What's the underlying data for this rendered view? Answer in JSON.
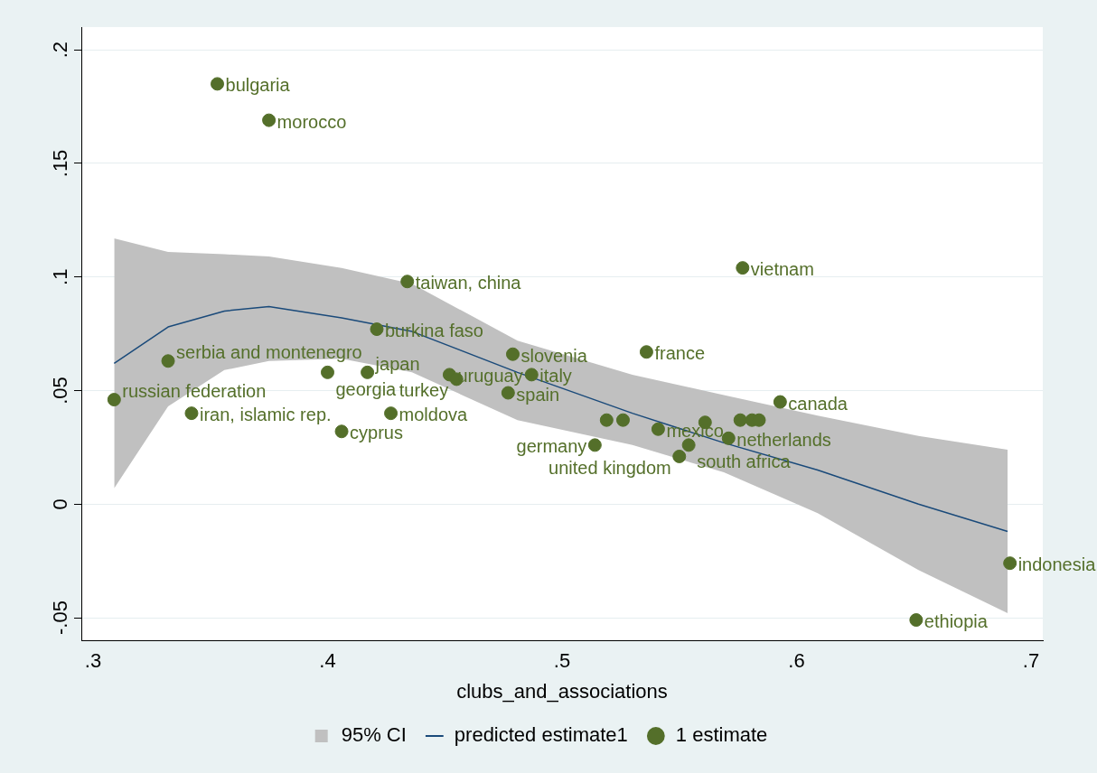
{
  "chart_data": {
    "type": "scatter",
    "xlabel": "clubs_and_associations",
    "xlim": [
      0.295,
      0.705
    ],
    "xticks": [
      {
        "value": 0.3,
        "label": ".3"
      },
      {
        "value": 0.4,
        "label": ".4"
      },
      {
        "value": 0.5,
        "label": ".5"
      },
      {
        "value": 0.6,
        "label": ".6"
      },
      {
        "value": 0.7,
        "label": ".7"
      }
    ],
    "ylim": [
      -0.06,
      0.21
    ],
    "yticks": [
      {
        "value": -0.05,
        "label": "-.05"
      },
      {
        "value": 0,
        "label": "0"
      },
      {
        "value": 0.05,
        "label": ".05"
      },
      {
        "value": 0.1,
        "label": ".1"
      },
      {
        "value": 0.15,
        "label": ".15"
      },
      {
        "value": 0.2,
        "label": ".2"
      }
    ],
    "grid": "y",
    "legend": "bottom",
    "series": [
      {
        "name": "95% CI",
        "type": "area",
        "color": "#c0c0c0"
      },
      {
        "name": "predicted estimate1",
        "type": "line",
        "color": "#1a4a7a",
        "marker": "none",
        "x": [
          0.309,
          0.332,
          0.356,
          0.375,
          0.406,
          0.436,
          0.481,
          0.53,
          0.569,
          0.609,
          0.652,
          0.69
        ],
        "values": [
          0.062,
          0.078,
          0.085,
          0.087,
          0.082,
          0.076,
          0.058,
          0.04,
          0.027,
          0.015,
          0.0,
          -0.012
        ],
        "lower": [
          0.007,
          0.043,
          0.059,
          0.063,
          0.064,
          0.058,
          0.037,
          0.026,
          0.014,
          -0.004,
          -0.029,
          -0.048
        ],
        "upper": [
          0.117,
          0.111,
          0.11,
          0.109,
          0.104,
          0.097,
          0.072,
          0.057,
          0.048,
          0.039,
          0.03,
          0.024
        ]
      },
      {
        "name": "1 estimate",
        "type": "scatter",
        "color": "#546f2a",
        "marker": "circle",
        "x": [
          0.353,
          0.375,
          0.434,
          0.577,
          0.421,
          0.479,
          0.536,
          0.332,
          0.4,
          0.417,
          0.452,
          0.455,
          0.487,
          0.477,
          0.309,
          0.342,
          0.427,
          0.406,
          0.593,
          0.519,
          0.526,
          0.541,
          0.561,
          0.576,
          0.581,
          0.584,
          0.571,
          0.514,
          0.554,
          0.55,
          0.691,
          0.651
        ],
        "values": [
          0.185,
          0.169,
          0.098,
          0.104,
          0.077,
          0.066,
          0.067,
          0.063,
          0.058,
          0.058,
          0.057,
          0.055,
          0.057,
          0.049,
          0.046,
          0.04,
          0.04,
          0.032,
          0.045,
          0.037,
          0.037,
          0.033,
          0.036,
          0.037,
          0.037,
          0.037,
          0.029,
          0.026,
          0.026,
          0.021,
          -0.026,
          -0.051
        ],
        "value_labels": [
          "bulgaria",
          "morocco",
          "taiwan, china",
          "vietnam",
          "burkina faso",
          "slovenia",
          "france",
          "serbia and montenegro",
          "georgia",
          "japan",
          "uruguay",
          "turkey",
          "italy",
          "spain",
          "russian federation",
          "iran, islamic rep.",
          "moldova",
          "cyprus",
          "canada",
          null,
          null,
          "mexico",
          null,
          null,
          null,
          null,
          "netherlands",
          "germany",
          "south africa",
          "united kingdom",
          "indonesia",
          "ethiopia"
        ]
      }
    ]
  }
}
